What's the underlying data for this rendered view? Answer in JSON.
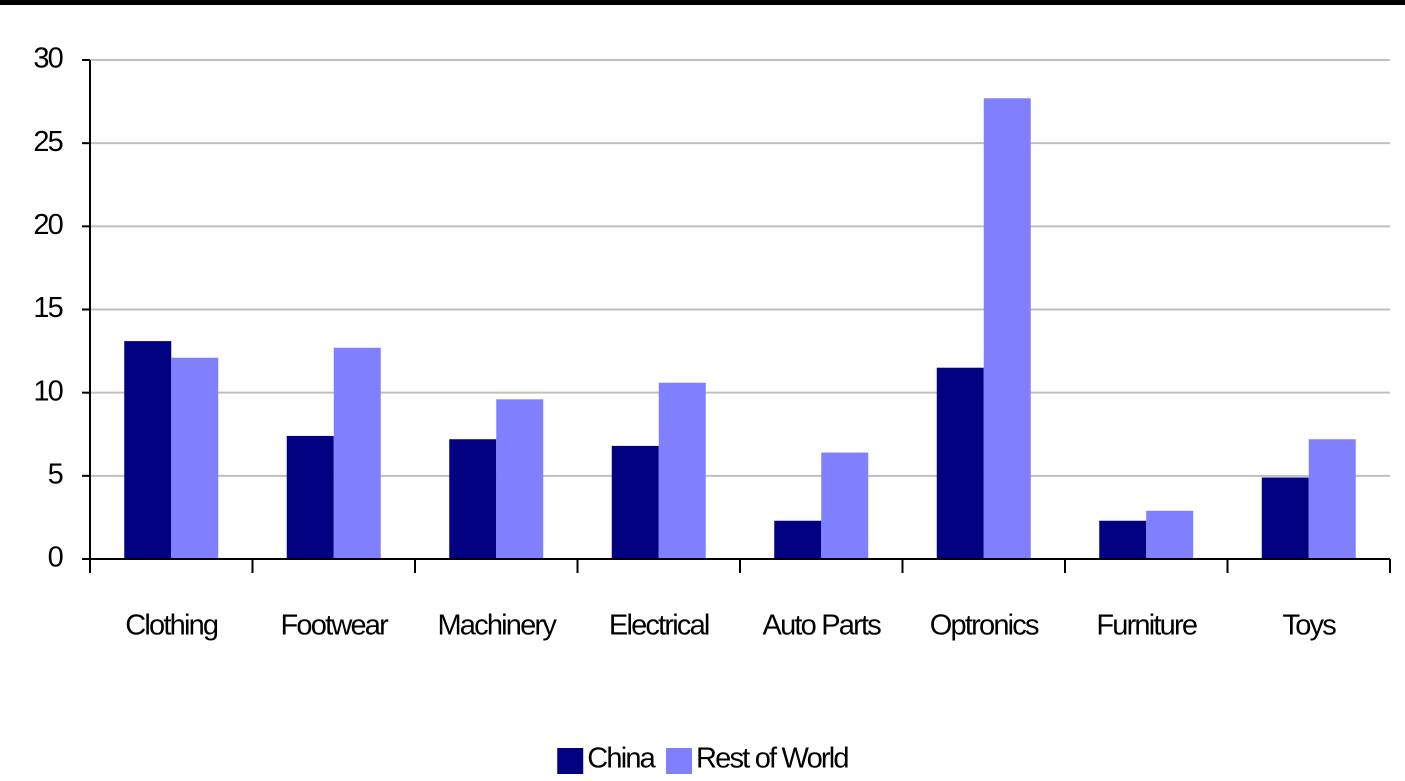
{
  "chart_data": {
    "type": "bar",
    "categories": [
      "Clothing",
      "Footwear",
      "Machinery",
      "Electrical",
      "Auto Parts",
      "Optronics",
      "Furniture",
      "Toys"
    ],
    "series": [
      {
        "name": "China",
        "color": "#000080",
        "values": [
          13.1,
          7.4,
          7.2,
          6.8,
          2.3,
          11.5,
          2.3,
          4.9
        ]
      },
      {
        "name": "Rest of World",
        "color": "#8080ff",
        "values": [
          12.1,
          12.7,
          9.6,
          10.6,
          6.4,
          27.7,
          2.9,
          7.2
        ]
      }
    ],
    "ylim": [
      0,
      30
    ],
    "yticks": [
      0,
      5,
      10,
      15,
      20,
      25,
      30
    ],
    "grid": true,
    "legend": "bottom"
  }
}
